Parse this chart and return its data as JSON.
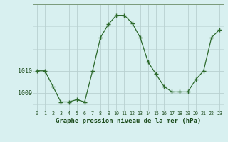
{
  "x": [
    0,
    1,
    2,
    3,
    4,
    5,
    6,
    7,
    8,
    9,
    10,
    11,
    12,
    13,
    14,
    15,
    16,
    17,
    18,
    19,
    20,
    21,
    22,
    23
  ],
  "y": [
    1010.0,
    1010.0,
    1009.3,
    1008.6,
    1008.6,
    1008.7,
    1008.6,
    1010.0,
    1011.5,
    1012.1,
    1012.5,
    1012.5,
    1012.15,
    1011.5,
    1010.4,
    1009.85,
    1009.3,
    1009.05,
    1009.05,
    1009.05,
    1009.6,
    1010.0,
    1011.5,
    1011.85
  ],
  "line_color": "#2d6a2d",
  "marker": "+",
  "bg_color": "#d8f0f0",
  "grid_color": "#b8d0d0",
  "xlabel": "Graphe pression niveau de la mer (hPa)",
  "ytick_labels": [
    "1009",
    "1010"
  ],
  "ytick_values": [
    1009,
    1010
  ],
  "xlim": [
    -0.5,
    23.5
  ],
  "ylim": [
    1008.2,
    1013.0
  ]
}
